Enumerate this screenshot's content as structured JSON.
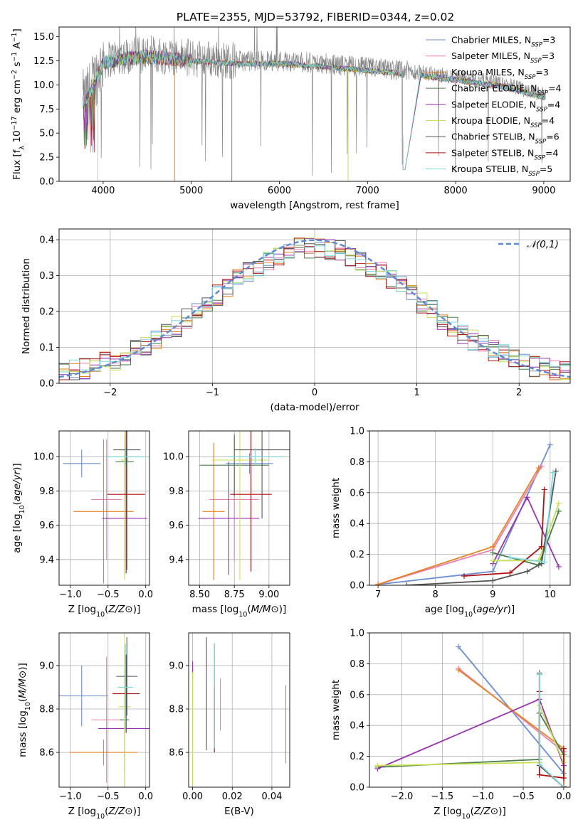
{
  "colors": {
    "miles_chabrier": "#6a8fd6",
    "miles_salpeter": "#e97fb2",
    "miles_kroupa": "#e9821f",
    "elodie_chabrier": "#4a7d4a",
    "elodie_salpeter": "#9933b3",
    "elodie_kroupa": "#c8e052",
    "stelib_chabrier": "#555555",
    "stelib_salpeter": "#b01010",
    "stelib_kroupa": "#7ad8de",
    "spectrum": "#888888",
    "normal_curve": "#5b8bd6"
  },
  "chart_data": [
    {
      "type": "line",
      "title": "PLATE=2355, MJD=53792, FIBERID=0344, z=0.02",
      "xlabel": "wavelength [Angstrom, rest frame]",
      "ylabel": "Flux [f_λ 10^-17 erg cm^-2 s^-1 A^-1]",
      "xlim": [
        3500,
        9300
      ],
      "ylim": [
        0,
        16
      ],
      "xticks": [
        "4000",
        "5000",
        "6000",
        "7000",
        "8000",
        "9000"
      ],
      "yticks": [
        "0.0",
        "2.5",
        "5.0",
        "7.5",
        "10.0",
        "12.5",
        "15.0"
      ],
      "legend_position": "top-right",
      "series": [
        {
          "name": "Chabrier MILES, N_SSP=3"
        },
        {
          "name": "Salpeter MILES, N_SSP=3"
        },
        {
          "name": "Kroupa MILES, N_SSP=3"
        },
        {
          "name": "Chabrier ELODIE, N_SSP=4"
        },
        {
          "name": "Salpeter ELODIE, N_SSP=4"
        },
        {
          "name": "Kroupa ELODIE, N_SSP=4"
        },
        {
          "name": "Chabrier STELIB, N_SSP=6"
        },
        {
          "name": "Salpeter STELIB, N_SSP=4"
        },
        {
          "name": "Kroupa STELIB, N_SSP=5"
        }
      ],
      "spectrum_envelope": {
        "x": [
          3800,
          4000,
          4200,
          4500,
          5000,
          5500,
          6000,
          6500,
          7000,
          7500,
          8000,
          8500,
          9000
        ],
        "y": [
          8.5,
          12.5,
          13.0,
          13.2,
          12.8,
          12.5,
          12.5,
          12.2,
          11.8,
          11.4,
          10.8,
          10.2,
          9.0
        ]
      }
    },
    {
      "type": "bar",
      "xlabel": "(data-model)/error",
      "ylabel": "Normed distribution",
      "xlim": [
        -2.5,
        2.5
      ],
      "ylim": [
        0,
        0.43
      ],
      "xticks": [
        "−2",
        "−1",
        "0",
        "1",
        "2"
      ],
      "yticks": [
        "0.0",
        "0.1",
        "0.2",
        "0.3",
        "0.4"
      ],
      "legend_position": "top-right",
      "reference_curve": {
        "name": "𝒩(0,1)",
        "mean": 0,
        "sigma": 1
      },
      "histogram_bins": {
        "start": -2.5,
        "width": 0.1,
        "count": 50
      }
    },
    {
      "type": "scatter",
      "xlabel": "Z [log10(Z/Z⊙)]",
      "ylabel": "age  [log10(age/yr)]",
      "xlim": [
        -1.15,
        0.05
      ],
      "ylim": [
        9.25,
        10.15
      ],
      "xticks": [
        "−1.0",
        "−0.5",
        "0.0"
      ],
      "yticks": [
        "9.4",
        "9.6",
        "9.8",
        "10.0"
      ],
      "points": [
        {
          "x": -0.85,
          "y": 9.96,
          "xerr": 0.25,
          "yerr": 0.08
        },
        {
          "x": -0.52,
          "y": 9.75,
          "xerr": 0.2,
          "yerr": 0.35
        },
        {
          "x": -0.56,
          "y": 9.68,
          "xerr": 0.4,
          "yerr": 0.42
        },
        {
          "x": -0.28,
          "y": 9.97,
          "xerr": 0.12,
          "yerr": 0.15
        },
        {
          "x": -0.28,
          "y": 9.64,
          "xerr": 0.3,
          "yerr": 0.33
        },
        {
          "x": -0.28,
          "y": 9.98,
          "xerr": 0.05,
          "yerr": 0.7
        },
        {
          "x": -0.25,
          "y": 10.04,
          "xerr": 0.18,
          "yerr": 0.7
        },
        {
          "x": -0.26,
          "y": 9.78,
          "xerr": 0.25,
          "yerr": 0.46
        },
        {
          "x": -0.27,
          "y": 10.0,
          "xerr": 0.25,
          "yerr": 0.05
        }
      ]
    },
    {
      "type": "scatter",
      "xlabel": "mass [log10(M/M⊙)]",
      "ylabel": "",
      "xlim": [
        8.42,
        9.15
      ],
      "ylim": [
        9.25,
        10.15
      ],
      "xticks": [
        "8.50",
        "8.75",
        "9.00"
      ],
      "yticks": [
        "9.4",
        "9.6",
        "9.8",
        "10.0"
      ],
      "points": [
        {
          "x": 8.86,
          "y": 9.96,
          "xerr": 0.17,
          "yerr": 0.06
        },
        {
          "x": 8.75,
          "y": 9.75,
          "xerr": 0.18,
          "yerr": 0.36
        },
        {
          "x": 8.6,
          "y": 9.68,
          "xerr": 0.08,
          "yerr": 0.4
        },
        {
          "x": 8.75,
          "y": 9.95,
          "xerr": 0.25,
          "yerr": 0.18
        },
        {
          "x": 8.71,
          "y": 9.64,
          "xerr": 0.22,
          "yerr": 0.33
        },
        {
          "x": 8.79,
          "y": 9.98,
          "xerr": 0.2,
          "yerr": 0.7
        },
        {
          "x": 8.95,
          "y": 10.04,
          "xerr": 0.2,
          "yerr": 0.4
        },
        {
          "x": 8.87,
          "y": 9.78,
          "xerr": 0.15,
          "yerr": 0.45
        },
        {
          "x": 8.9,
          "y": 10.0,
          "xerr": 0.2,
          "yerr": 0.05
        }
      ]
    },
    {
      "type": "line",
      "xlabel": "age  [log10(age/yr)]",
      "ylabel": "mass weight",
      "xlim": [
        6.85,
        10.35
      ],
      "ylim": [
        0,
        1
      ],
      "xticks": [
        "7",
        "8",
        "9",
        "10"
      ],
      "yticks": [
        "0.0",
        "0.2",
        "0.4",
        "0.6",
        "0.8",
        "1.0"
      ],
      "series": [
        {
          "x": [
            7.0,
            9.0,
            10.0
          ],
          "y": [
            0.005,
            0.09,
            0.91
          ]
        },
        {
          "x": [
            7.0,
            9.0,
            9.85
          ],
          "y": [
            0.005,
            0.23,
            0.77
          ]
        },
        {
          "x": [
            7.0,
            9.0,
            9.8
          ],
          "y": [
            0.005,
            0.25,
            0.76
          ]
        },
        {
          "x": [
            9.0,
            9.8,
            10.15
          ],
          "y": [
            0.21,
            0.13,
            0.48
          ]
        },
        {
          "x": [
            9.0,
            9.6,
            10.15
          ],
          "y": [
            0.14,
            0.57,
            0.12
          ]
        },
        {
          "x": [
            9.0,
            9.8,
            10.15
          ],
          "y": [
            0.16,
            0.16,
            0.53
          ]
        },
        {
          "x": [
            7.5,
            9.0,
            9.6,
            9.85,
            10.1
          ],
          "y": [
            0.0,
            0.03,
            0.09,
            0.14,
            0.74
          ]
        },
        {
          "x": [
            8.5,
            9.3,
            9.85,
            9.9
          ],
          "y": [
            0.06,
            0.08,
            0.25,
            0.62
          ]
        },
        {
          "x": [
            9.3,
            9.9,
            10.05
          ],
          "y": [
            0.18,
            0.15,
            0.73
          ]
        }
      ]
    },
    {
      "type": "scatter",
      "xlabel": "Z [log10(Z/Z⊙)]",
      "ylabel": "mass [log10(M/M⊙)]",
      "xlim": [
        -1.15,
        0.05
      ],
      "ylim": [
        8.44,
        9.15
      ],
      "xticks": [
        "−1.0",
        "−0.5",
        "0.0"
      ],
      "yticks": [
        "8.6",
        "8.8",
        "9.0"
      ],
      "points": [
        {
          "x": -0.85,
          "y": 8.86,
          "xerr": 0.35,
          "yerr": 0.14
        },
        {
          "x": -0.52,
          "y": 8.75,
          "xerr": 0.2,
          "yerr": 0.29
        },
        {
          "x": -0.56,
          "y": 8.6,
          "xerr": 0.45,
          "yerr": 0.06
        },
        {
          "x": -0.28,
          "y": 8.75,
          "xerr": 0.06,
          "yerr": 0.25
        },
        {
          "x": -0.28,
          "y": 8.71,
          "xerr": 0.35,
          "yerr": 0.35
        },
        {
          "x": -0.28,
          "y": 8.81,
          "xerr": 0.08,
          "yerr": 0.4
        },
        {
          "x": -0.25,
          "y": 8.95,
          "xerr": 0.14,
          "yerr": 0.18
        },
        {
          "x": -0.26,
          "y": 8.87,
          "xerr": 0.18,
          "yerr": 0.18
        },
        {
          "x": -0.27,
          "y": 8.9,
          "xerr": 0.1,
          "yerr": 0.2
        }
      ]
    },
    {
      "type": "scatter",
      "xlabel": "E(B-V)",
      "ylabel": "",
      "xlim": [
        -0.002,
        0.049
      ],
      "ylim": [
        8.44,
        9.15
      ],
      "xticks": [
        "0.00",
        "0.02",
        "0.04"
      ],
      "yticks": [
        "8.6",
        "8.8",
        "9.0"
      ],
      "points": [
        {
          "x": 0.0,
          "y": 8.87,
          "yerr": 0.14
        },
        {
          "x": 0.014,
          "y": 8.82,
          "yerr": 0.12
        },
        {
          "x": 0.047,
          "y": 8.73,
          "yerr": 0.18
        },
        {
          "x": 0.011,
          "y": 8.88,
          "yerr": 0.22
        },
        {
          "x": 0.0,
          "y": 8.98,
          "yerr": 0.04
        },
        {
          "x": 0.0,
          "y": 8.71,
          "yerr": 0.26
        },
        {
          "x": 0.007,
          "y": 8.87,
          "yerr": 0.26
        },
        {
          "x": 0.011,
          "y": 8.75,
          "yerr": 0.15
        },
        {
          "x": 0.011,
          "y": 8.86,
          "yerr": 0.24
        }
      ]
    },
    {
      "type": "line",
      "xlabel": "Z [log10(Z/Z⊙)]",
      "ylabel": "mass weight",
      "xlim": [
        -2.4,
        0.08
      ],
      "ylim": [
        0,
        1
      ],
      "xticks": [
        "−2.0",
        "−1.5",
        "−1.0",
        "−0.5",
        "0.0"
      ],
      "yticks": [
        "0.0",
        "0.2",
        "0.4",
        "0.6",
        "0.8",
        "1.0"
      ],
      "series": [
        {
          "x": [
            -1.3,
            0.0,
            0.0
          ],
          "y": [
            0.91,
            0.09,
            0.005
          ]
        },
        {
          "x": [
            -1.3,
            0.0,
            0.0
          ],
          "y": [
            0.77,
            0.23,
            0.005
          ]
        },
        {
          "x": [
            -1.3,
            0.0,
            0.0
          ],
          "y": [
            0.76,
            0.25,
            0.005
          ]
        },
        {
          "x": [
            -2.3,
            -0.3,
            -0.3,
            0.0
          ],
          "y": [
            0.13,
            0.18,
            0.48,
            0.21
          ]
        },
        {
          "x": [
            -2.3,
            -0.3,
            0.0
          ],
          "y": [
            0.12,
            0.57,
            0.14
          ]
        },
        {
          "x": [
            -2.3,
            -0.3,
            -0.3,
            0.0
          ],
          "y": [
            0.14,
            0.16,
            0.53,
            0.16
          ]
        },
        {
          "x": [
            -0.3,
            -0.3,
            -0.3,
            0.0
          ],
          "y": [
            0.74,
            0.62,
            0.14,
            0.0
          ]
        },
        {
          "x": [
            -0.3,
            -0.3,
            0.0,
            0.0
          ],
          "y": [
            0.62,
            0.08,
            0.06,
            0.25
          ]
        },
        {
          "x": [
            -0.3,
            -0.3,
            0.0
          ],
          "y": [
            0.73,
            0.15,
            0.0
          ]
        }
      ]
    }
  ]
}
